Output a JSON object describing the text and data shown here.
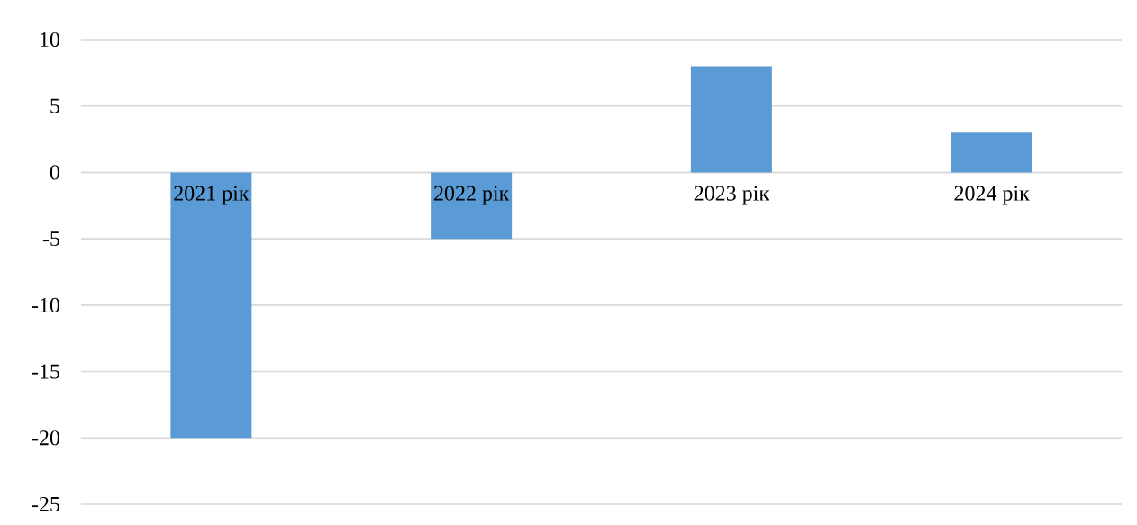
{
  "chart_data": {
    "type": "bar",
    "categories": [
      "2021 рік",
      "2022 рік",
      "2023 рік",
      "2024 рік"
    ],
    "values": [
      -20,
      -5,
      8,
      3
    ],
    "color": "#5b9bd5",
    "ylim": [
      -25,
      10
    ],
    "yticks": [
      -25,
      -20,
      -15,
      -10,
      -5,
      0,
      5,
      10
    ],
    "grid": "y"
  }
}
